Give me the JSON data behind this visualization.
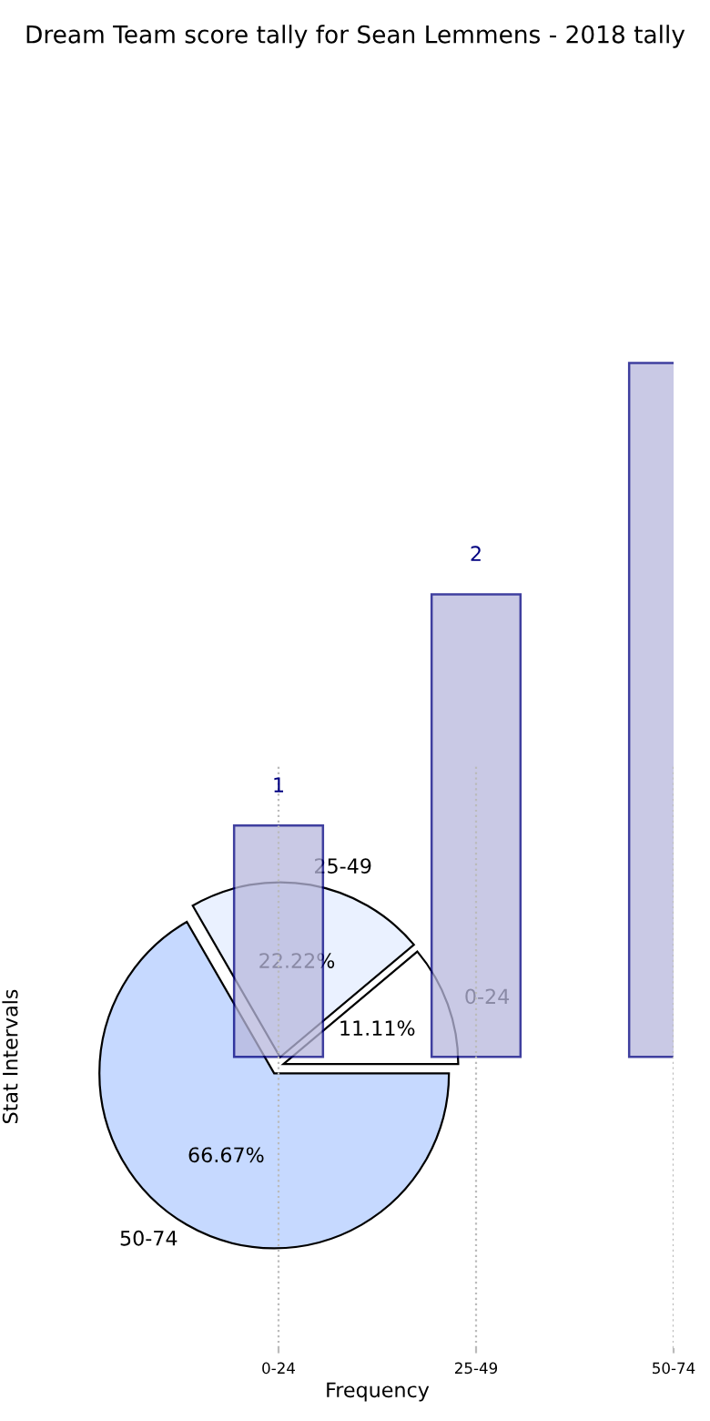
{
  "chart_data": [
    {
      "type": "pie",
      "title": "Dream Team score tally for Sean Lemmens - 2018 tally",
      "categories": [
        "0-24",
        "25-49",
        "50-74"
      ],
      "values": [
        11.11,
        22.22,
        66.67
      ],
      "colors": [
        "#ffffff",
        "#eaf1ff",
        "#c6d9ff"
      ],
      "value_labels": [
        "11.11%",
        "22.22%",
        "66.67%"
      ]
    },
    {
      "type": "bar",
      "categories": [
        "0-24",
        "25-49",
        "50-74"
      ],
      "values": [
        1,
        2,
        3
      ],
      "value_labels": [
        "1",
        "2",
        null
      ],
      "color": "#b8b8dd",
      "xlabel": "Frequency",
      "ylabel": "Stat Intervals",
      "ylim": [
        -1.26,
        4.57
      ],
      "grid": "x",
      "tick_labels": "x"
    }
  ]
}
